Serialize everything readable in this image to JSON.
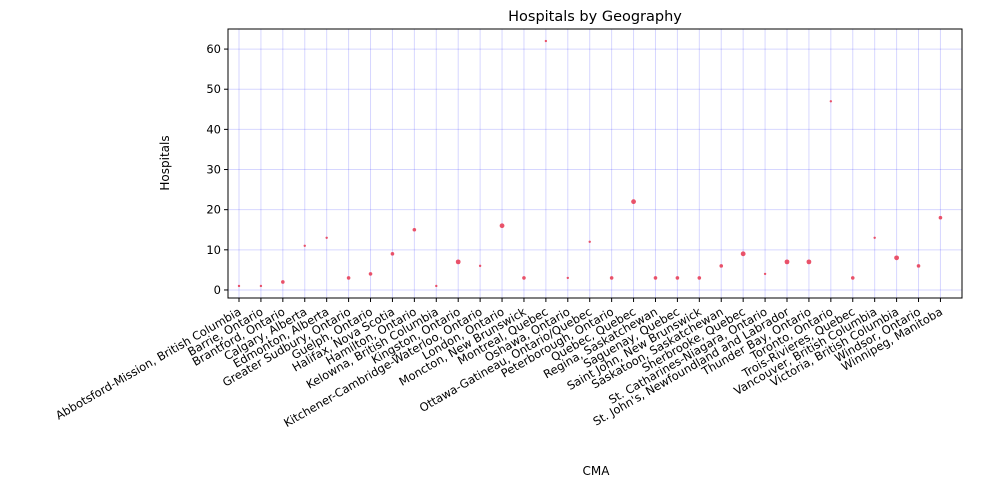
{
  "chart_data": {
    "type": "scatter",
    "title": "Hospitals by Geography",
    "xlabel": "CMA",
    "ylabel": "Hospitals",
    "ylim": [
      -2,
      65
    ],
    "yticks": [
      0,
      10,
      20,
      30,
      40,
      50,
      60
    ],
    "grid": true,
    "grid_color": "#0000ff",
    "marker_color": "#e8405a",
    "categories": [
      "Abbotsford-Mission, British Columbia",
      "Barrie, Ontario",
      "Brantford, Ontario",
      "Calgary, Alberta",
      "Edmonton, Alberta",
      "Greater Sudbury, Ontario",
      "Guelph, Ontario",
      "Halifax, Nova Scotia",
      "Hamilton, Ontario",
      "Kelowna, British Columbia",
      "Kingston, Ontario",
      "Kitchener-Cambridge-Waterloo, Ontario",
      "London, Ontario",
      "Moncton, New Brunswick",
      "Montreal, Quebec",
      "Oshawa, Ontario",
      "Ottawa-Gatineau, Ontario/Quebec",
      "Peterborough, Ontario",
      "Quebec, Quebec",
      "Regina, Saskatchewan",
      "Saguenay, Quebec",
      "Saint John, New Brunswick",
      "Saskatoon, Saskatchewan",
      "Sherbrooke, Quebec",
      "St. Catharines-Niagara, Ontario",
      "St. John's, Newfoundland and Labrador",
      "Thunder Bay, Ontario",
      "Toronto, Ontario",
      "Trois-Rivieres, Quebec",
      "Vancouver, British Columbia",
      "Victoria, British Columbia",
      "Windsor, Ontario",
      "Winnipeg, Manitoba"
    ],
    "values": [
      1,
      1,
      2,
      11,
      13,
      3,
      4,
      9,
      15,
      1,
      7,
      6,
      16,
      3,
      62,
      3,
      12,
      3,
      22,
      3,
      3,
      3,
      6,
      9,
      4,
      7,
      7,
      47,
      3,
      13,
      8,
      6,
      18
    ],
    "marker_sizes": [
      1,
      1,
      2,
      1,
      1,
      2,
      2,
      2,
      2,
      1,
      3,
      1,
      3,
      2,
      1,
      1,
      1,
      2,
      3,
      2,
      2,
      2,
      2,
      3,
      1,
      3,
      3,
      1,
      2,
      1,
      3,
      2,
      2
    ]
  }
}
